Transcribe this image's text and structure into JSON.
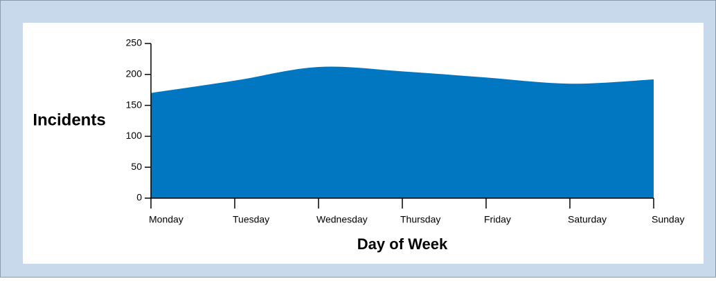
{
  "chart_data": {
    "type": "area",
    "x_label": "Day of Week",
    "y_label": "Incidents",
    "categories": [
      "Monday",
      "Tuesday",
      "Wednesday",
      "Thursday",
      "Friday",
      "Saturday",
      "Sunday"
    ],
    "values": [
      170,
      190,
      212,
      205,
      195,
      185,
      192
    ],
    "color": "#0077c0",
    "ylim": [
      0,
      250
    ],
    "yticks": [
      0,
      50,
      100,
      150,
      200,
      250
    ]
  }
}
